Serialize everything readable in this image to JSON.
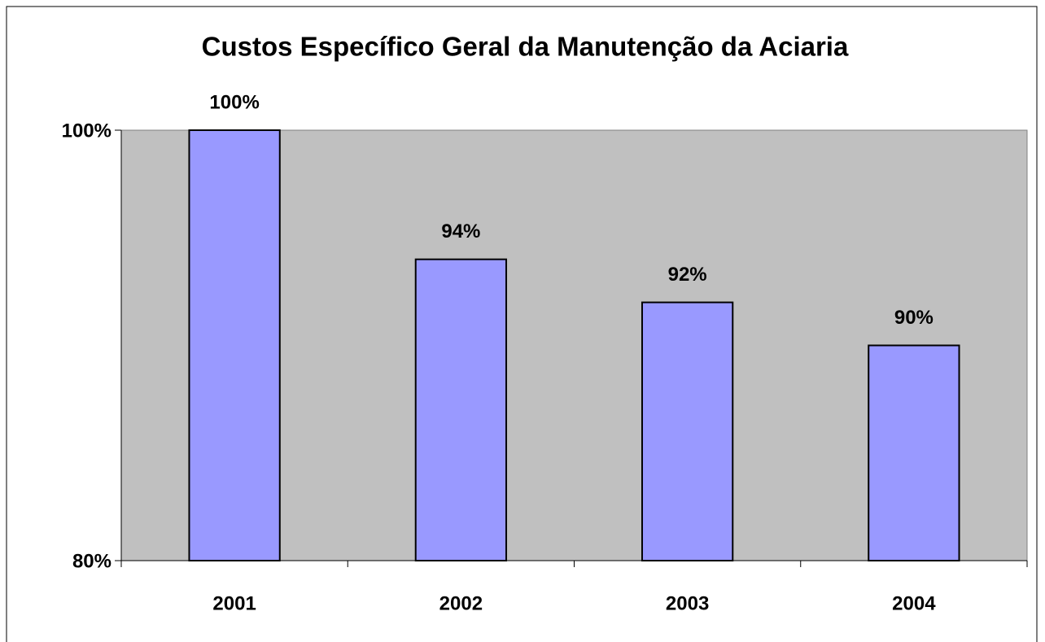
{
  "chart_data": {
    "type": "bar",
    "title": "Custos Específico Geral da Manutenção da Aciaria",
    "categories": [
      "2001",
      "2002",
      "2003",
      "2004"
    ],
    "values": [
      100,
      94,
      92,
      90
    ],
    "value_labels": [
      "100%",
      "94%",
      "92%",
      "90%"
    ],
    "color": "#9999ff",
    "ylim": [
      80,
      100
    ],
    "yticks": [
      {
        "value": 80,
        "label": "80%"
      },
      {
        "value": 100,
        "label": "100%"
      }
    ],
    "plot_background": "#c0c0c0"
  }
}
